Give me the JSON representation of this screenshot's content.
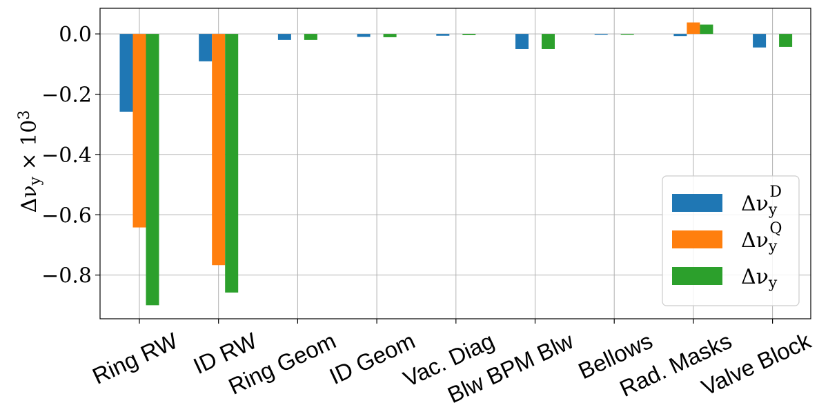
{
  "chart_data": {
    "type": "bar",
    "categories": [
      "Ring RW",
      "ID RW",
      "Ring Geom",
      "ID Geom",
      "Vac.  Diag",
      "Blw BPM Blw",
      "Bellows",
      "Rad. Masks",
      "Valve Block"
    ],
    "series": [
      {
        "name": "Δν_y^D",
        "color": "#1f77b4",
        "values": [
          -0.258,
          -0.091,
          -0.02,
          -0.01,
          -0.006,
          -0.05,
          -0.003,
          -0.007,
          -0.045
        ]
      },
      {
        "name": "Δν_y^Q",
        "color": "#ff7f0e",
        "values": [
          -0.642,
          -0.767,
          0.0,
          0.0,
          0.0,
          0.0,
          0.0,
          0.038,
          0.0
        ]
      },
      {
        "name": "Δν_y",
        "color": "#2ca02c",
        "values": [
          -0.9,
          -0.858,
          -0.02,
          -0.011,
          -0.004,
          -0.05,
          -0.003,
          0.031,
          -0.043
        ]
      }
    ],
    "ylabel": "Δν_y × 10^3",
    "ylim": [
      -0.945,
      0.085
    ],
    "yticks": [
      0.0,
      -0.2,
      -0.4,
      -0.6,
      -0.8
    ],
    "ytick_labels": [
      "0.0",
      "−0.2",
      "−0.4",
      "−0.6",
      "−0.8"
    ],
    "grid": true,
    "legend_position": "lower-right"
  }
}
